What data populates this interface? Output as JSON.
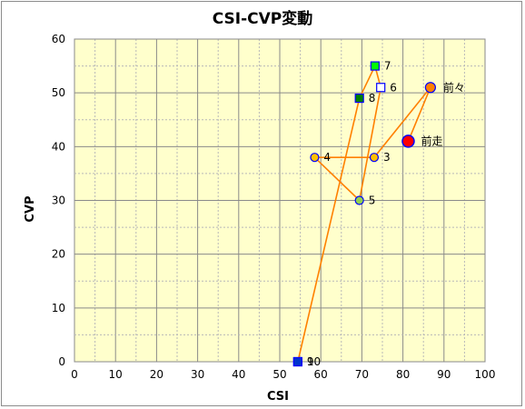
{
  "chart_data": {
    "type": "scatter",
    "title": "CSI-CVP変動",
    "xlabel": "CSI",
    "ylabel": "CVP",
    "xlim": [
      0,
      100
    ],
    "ylim": [
      0,
      60
    ],
    "x_ticks": [
      "0",
      "10",
      "20",
      "30",
      "40",
      "50",
      "60",
      "70",
      "80",
      "90",
      "100"
    ],
    "y_ticks": [
      "0",
      "10",
      "20",
      "30",
      "40",
      "50",
      "60"
    ],
    "grid": true,
    "plot_background": "#ffffcc",
    "line_color": "#ff8000",
    "points": [
      {
        "label": "前走",
        "x": 81.3,
        "y": 41,
        "marker": "circle-large",
        "fill": "#ff0000",
        "stroke": "#0000ff"
      },
      {
        "label": "前々",
        "x": 86.7,
        "y": 51,
        "marker": "circle",
        "fill": "#ff8000",
        "stroke": "#0000ff"
      },
      {
        "label": "3",
        "x": 73.0,
        "y": 38,
        "marker": "circle",
        "fill": "#ffc000",
        "stroke": "#0000ff"
      },
      {
        "label": "4",
        "x": 58.5,
        "y": 38,
        "marker": "circle",
        "fill": "#ffc000",
        "stroke": "#0000ff"
      },
      {
        "label": "5",
        "x": 69.4,
        "y": 30,
        "marker": "circle",
        "fill": "#92d050",
        "stroke": "#0000ff"
      },
      {
        "label": "6",
        "x": 74.6,
        "y": 51,
        "marker": "square",
        "fill": "#ffffff",
        "stroke": "#0000ff"
      },
      {
        "label": "7",
        "x": 73.2,
        "y": 55,
        "marker": "square",
        "fill": "#00ff00",
        "stroke": "#0000ff"
      },
      {
        "label": "8",
        "x": 69.4,
        "y": 49,
        "marker": "square",
        "fill": "#008000",
        "stroke": "#0000ff"
      },
      {
        "label": "9",
        "x": 54.4,
        "y": 0,
        "marker": "square",
        "fill": "#0033cc",
        "stroke": "#0000ff"
      },
      {
        "label": "10",
        "x": 54.4,
        "y": 0,
        "marker": "square",
        "fill": "#0033cc",
        "stroke": "#0000ff"
      }
    ]
  }
}
